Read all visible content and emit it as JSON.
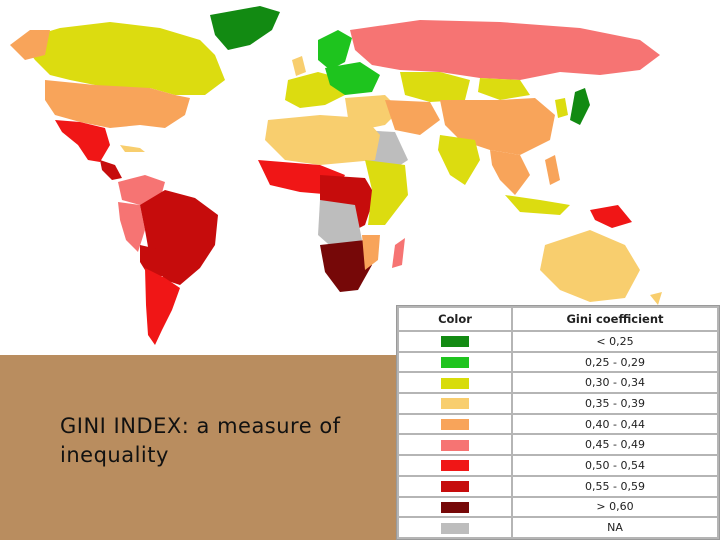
{
  "caption": {
    "line1": "GINI INDEX: a measure of",
    "line2": "inequality"
  },
  "legend": {
    "header_color": "Color",
    "header_range": "Gini coefficient",
    "rows": [
      {
        "label": "< 0,25",
        "color": "#128a12"
      },
      {
        "label": "0,25 - 0,29",
        "color": "#1ec41e"
      },
      {
        "label": "0,30 - 0,34",
        "color": "#d8dc0a"
      },
      {
        "label": "0,35 - 0,39",
        "color": "#f8ce6e"
      },
      {
        "label": "0,40 - 0,44",
        "color": "#f8a45a"
      },
      {
        "label": "0,45 - 0,49",
        "color": "#f67473"
      },
      {
        "label": "0,50 - 0,54",
        "color": "#f01616"
      },
      {
        "label": "0,55 - 0,59",
        "color": "#c60c0c"
      },
      {
        "label": "> 0,60",
        "color": "#760808"
      },
      {
        "label": "NA",
        "color": "#bdbdbd"
      }
    ]
  }
}
